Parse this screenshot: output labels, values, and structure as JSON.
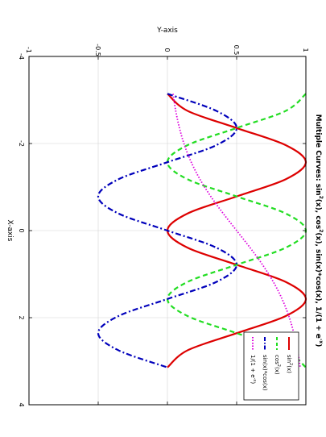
{
  "chart_data": {
    "type": "line",
    "title": "Multiple Curves: sin²(x), cos²(x), sin(x)*cos(x), 1/(1 + e^-x)",
    "title_parts": {
      "a": "Multiple Curves: sin",
      "b": "(x), cos",
      "c": "(x), sin(x)*cos(x), 1/(1 + e",
      "d": ")",
      "sup2": "2",
      "supx": "-x"
    },
    "xlabel": "X-axis",
    "ylabel": "Y-axis",
    "xlim": [
      -4,
      4
    ],
    "ylim": [
      -1,
      1
    ],
    "x_ticks": [
      "-4",
      "-2",
      "0",
      "2",
      "4"
    ],
    "y_ticks": [
      "-1",
      "-0.5",
      "0",
      "0.5",
      "1"
    ],
    "grid": true,
    "orientation": "rotated 90° clockwise",
    "legend_position": "bottom-right",
    "x_range": [
      -3.14159,
      3.14159
    ],
    "series": [
      {
        "name": "sin²(x)",
        "legend": {
          "base": "sin",
          "sup": "2",
          "tail": "(x)"
        },
        "function": "sin^2(x)",
        "color": "#dd0000",
        "dash": "solid",
        "x": [
          -3.142,
          -2.749,
          -2.356,
          -1.963,
          -1.571,
          -1.178,
          -0.785,
          -0.393,
          0.0,
          0.393,
          0.785,
          1.178,
          1.571,
          1.963,
          2.356,
          2.749,
          3.142
        ],
        "y": [
          0.0,
          0.146,
          0.5,
          0.854,
          1.0,
          0.854,
          0.5,
          0.146,
          0.0,
          0.146,
          0.5,
          0.854,
          1.0,
          0.854,
          0.5,
          0.146,
          0.0
        ]
      },
      {
        "name": "cos²(x)",
        "legend": {
          "base": "cos",
          "sup": "2",
          "tail": "(x)"
        },
        "function": "cos^2(x)",
        "color": "#22dd22",
        "dash": "dashed",
        "x": [
          -3.142,
          -2.749,
          -2.356,
          -1.963,
          -1.571,
          -1.178,
          -0.785,
          -0.393,
          0.0,
          0.393,
          0.785,
          1.178,
          1.571,
          1.963,
          2.356,
          2.749,
          3.142
        ],
        "y": [
          1.0,
          0.854,
          0.5,
          0.146,
          0.0,
          0.146,
          0.5,
          0.854,
          1.0,
          0.854,
          0.5,
          0.146,
          0.0,
          0.146,
          0.5,
          0.854,
          1.0
        ]
      },
      {
        "name": "sin(x)*cos(x)",
        "legend": {
          "base": "sin(x)*cos(x)",
          "sup": "",
          "tail": ""
        },
        "function": "sin(x)*cos(x)",
        "color": "#0000bb",
        "dash": "dash-dot",
        "x": [
          -3.142,
          -2.749,
          -2.356,
          -1.963,
          -1.571,
          -1.178,
          -0.785,
          -0.393,
          0.0,
          0.393,
          0.785,
          1.178,
          1.571,
          1.963,
          2.356,
          2.749,
          3.142
        ],
        "y": [
          0.0,
          0.354,
          0.5,
          0.354,
          0.0,
          -0.354,
          -0.5,
          -0.354,
          0.0,
          0.354,
          0.5,
          0.354,
          0.0,
          -0.354,
          -0.5,
          -0.354,
          0.0
        ]
      },
      {
        "name": "1/(1 + e^-x)",
        "legend": {
          "base": "1/(1 + e",
          "sup": "-x",
          "tail": ")"
        },
        "function": "1/(1+e^-x)",
        "color": "#dd00dd",
        "dash": "dotted",
        "x": [
          -3.142,
          -2.749,
          -2.356,
          -1.963,
          -1.571,
          -1.178,
          -0.785,
          -0.393,
          0.0,
          0.393,
          0.785,
          1.178,
          1.571,
          1.963,
          2.356,
          2.749,
          3.142
        ],
        "y": [
          0.041,
          0.06,
          0.087,
          0.123,
          0.172,
          0.235,
          0.313,
          0.403,
          0.5,
          0.597,
          0.687,
          0.765,
          0.828,
          0.877,
          0.913,
          0.94,
          0.959
        ]
      }
    ]
  }
}
